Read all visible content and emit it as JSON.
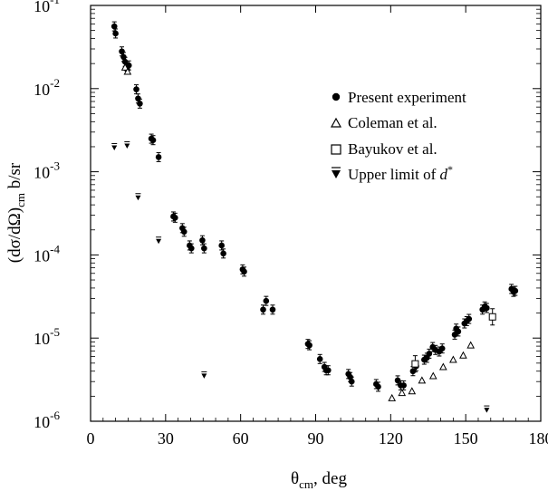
{
  "chart_data": {
    "type": "scatter",
    "xlabel": {
      "main": "θ",
      "sub": "cm",
      "rest": ", deg"
    },
    "ylabel": {
      "prefix": "(dσ/dΩ)",
      "sub": "cm",
      "rest": " b/sr"
    },
    "xlim": [
      0,
      180
    ],
    "ylim": [
      1e-06,
      0.1
    ],
    "yscale": "log",
    "x_ticks": [
      0,
      30,
      60,
      90,
      120,
      150,
      180
    ],
    "x_tick_labels": [
      "0",
      "30",
      "60",
      "90",
      "120",
      "150",
      "180"
    ],
    "y_ticks": [
      1e-06,
      1e-05,
      0.0001,
      0.001,
      0.01,
      0.1
    ],
    "y_tick_labels": [
      {
        "base": "10",
        "exp": "-6"
      },
      {
        "base": "10",
        "exp": "-5"
      },
      {
        "base": "10",
        "exp": "-4"
      },
      {
        "base": "10",
        "exp": "-3"
      },
      {
        "base": "10",
        "exp": "-2"
      },
      {
        "base": "10",
        "exp": "-1"
      }
    ],
    "grid": false,
    "legend_position": "upper-right",
    "series": [
      {
        "name": "Present experiment",
        "marker": "filled-circle",
        "points": [
          [
            9.5,
            0.056
          ],
          [
            10.0,
            0.046
          ],
          [
            12.5,
            0.028
          ],
          [
            13.2,
            0.024
          ],
          [
            13.8,
            0.021
          ],
          [
            14.6,
            0.017
          ],
          [
            15.3,
            0.019
          ],
          [
            18.3,
            0.0098
          ],
          [
            19.0,
            0.0076
          ],
          [
            19.7,
            0.0066
          ],
          [
            24.3,
            0.0025
          ],
          [
            25.0,
            0.0024
          ],
          [
            27.2,
            0.0015
          ],
          [
            33.1,
            0.00029
          ],
          [
            33.8,
            0.00028
          ],
          [
            36.7,
            0.00021
          ],
          [
            37.4,
            0.00019
          ],
          [
            39.6,
            0.00013
          ],
          [
            40.3,
            0.00012
          ],
          [
            44.7,
            0.00015
          ],
          [
            45.4,
            0.00012
          ],
          [
            52.4,
            0.00013
          ],
          [
            53.1,
            0.000104
          ],
          [
            60.8,
            6.7e-05
          ],
          [
            61.4,
            6.3e-05
          ],
          [
            69.0,
            2.2e-05
          ],
          [
            70.2,
            2.8e-05
          ],
          [
            72.8,
            2.2e-05
          ],
          [
            86.9,
            8.5e-06
          ],
          [
            87.5,
            8.2e-06
          ],
          [
            91.7,
            5.6e-06
          ],
          [
            93.5,
            4.5e-06
          ],
          [
            94.2,
            4.1e-06
          ],
          [
            95.0,
            4.1e-06
          ],
          [
            103.1,
            3.7e-06
          ],
          [
            103.8,
            3.4e-06
          ],
          [
            104.4,
            3e-06
          ],
          [
            114.2,
            2.8e-06
          ],
          [
            115.0,
            2.6e-06
          ],
          [
            122.8,
            3.1e-06
          ],
          [
            124.0,
            2.7e-06
          ],
          [
            125.2,
            2.7e-06
          ],
          [
            128.9,
            4e-06
          ],
          [
            130.2,
            4.6e-06
          ],
          [
            133.4,
            5.5e-06
          ],
          [
            134.5,
            5.8e-06
          ],
          [
            135.4,
            6.5e-06
          ],
          [
            136.8,
            7.8e-06
          ],
          [
            137.9,
            7.2e-06
          ],
          [
            139.4,
            6.9e-06
          ],
          [
            140.6,
            7.5e-06
          ],
          [
            145.6,
            1.1e-05
          ],
          [
            146.2,
            1.3e-05
          ],
          [
            147.0,
            1.2e-05
          ],
          [
            149.5,
            1.5e-05
          ],
          [
            150.4,
            1.6e-05
          ],
          [
            151.3,
            1.7e-05
          ],
          [
            156.7,
            2.2e-05
          ],
          [
            157.6,
            2.4e-05
          ],
          [
            158.4,
            2.3e-05
          ],
          [
            168.3,
            3.9e-05
          ],
          [
            169.1,
            3.6e-05
          ],
          [
            169.8,
            3.7e-05
          ]
        ]
      },
      {
        "name": "Coleman et al.",
        "marker": "open-triangle",
        "points": [
          [
            13.8,
            0.018
          ],
          [
            14.8,
            0.016
          ],
          [
            120.5,
            1.9e-06
          ],
          [
            124.5,
            2.2e-06
          ],
          [
            128.5,
            2.3e-06
          ],
          [
            132.5,
            3.1e-06
          ],
          [
            137.0,
            3.5e-06
          ],
          [
            141.0,
            4.5e-06
          ],
          [
            145.0,
            5.5e-06
          ],
          [
            149.0,
            6.2e-06
          ],
          [
            152.0,
            8.2e-06
          ]
        ]
      },
      {
        "name": "Bayukov et al.",
        "marker": "open-square",
        "points": [
          [
            129.8,
            4.9e-06
          ],
          [
            160.7,
            1.8e-05
          ]
        ]
      },
      {
        "name": "Upper limit of d*",
        "marker": "down-triangle-bar",
        "points": [
          [
            9.5,
            0.002
          ],
          [
            14.6,
            0.0021
          ],
          [
            19.0,
            0.0005
          ],
          [
            27.2,
            0.00015
          ],
          [
            45.4,
            3.6e-06
          ],
          [
            158.4,
            1.4e-06
          ]
        ]
      }
    ]
  },
  "legend": {
    "items": [
      {
        "label": "Present experiment"
      },
      {
        "label": "Coleman et al."
      },
      {
        "label": "Bayukov et al."
      },
      {
        "label": "Upper limit of ",
        "italic": "d",
        "sup": "*"
      }
    ]
  }
}
